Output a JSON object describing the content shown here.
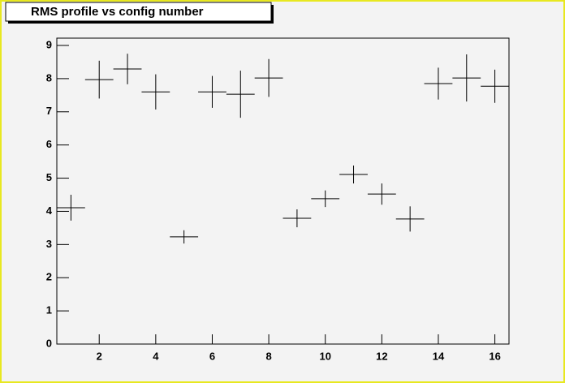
{
  "chart_data": {
    "type": "errorbar",
    "title": "RMS profile vs config number",
    "x": [
      1,
      2,
      3,
      4,
      5,
      6,
      7,
      8,
      9,
      10,
      11,
      12,
      13,
      14,
      15,
      16
    ],
    "values": [
      4.11,
      7.97,
      8.29,
      7.6,
      3.23,
      7.6,
      7.53,
      8.02,
      3.79,
      4.38,
      5.11,
      4.52,
      3.77,
      7.85,
      8.02,
      7.77
    ],
    "errors": [
      0.39,
      0.57,
      0.46,
      0.53,
      0.2,
      0.48,
      0.71,
      0.57,
      0.27,
      0.25,
      0.27,
      0.32,
      0.38,
      0.48,
      0.71,
      0.5
    ],
    "color": "#000000",
    "xlim": [
      0.5,
      16.5
    ],
    "xticks": [
      2,
      4,
      6,
      8,
      10,
      12,
      14,
      16
    ],
    "ylim": [
      0,
      9.22
    ],
    "yticks": [
      0,
      1,
      2,
      3,
      4,
      5,
      6,
      7,
      8,
      9
    ]
  }
}
